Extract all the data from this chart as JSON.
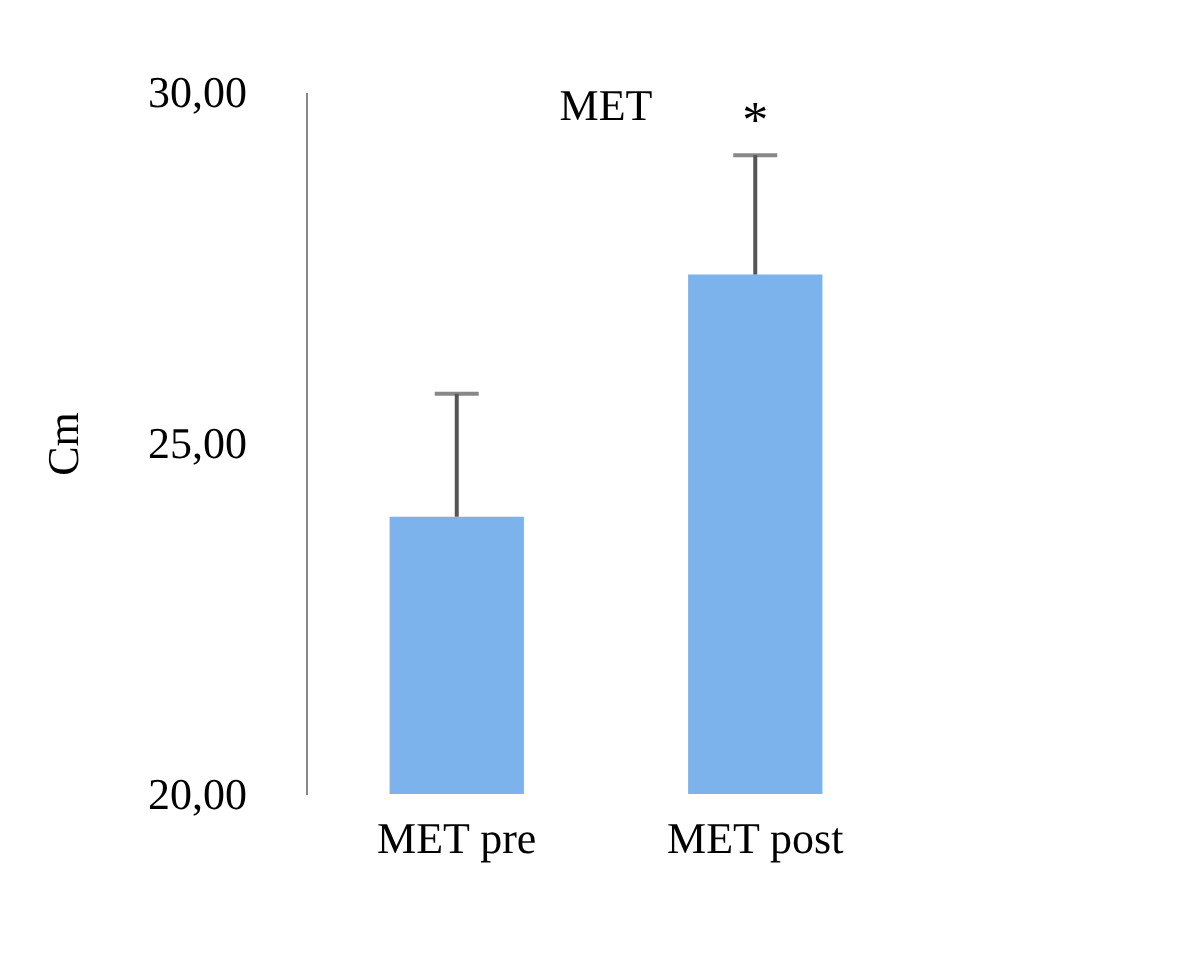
{
  "chart_data": {
    "type": "bar",
    "title": "MET",
    "ylabel": "Cm",
    "categories": [
      "MET pre",
      "MET post"
    ],
    "values": [
      23.95,
      27.4
    ],
    "errors": [
      [
        23.95,
        25.7
      ],
      [
        27.4,
        29.1
      ]
    ],
    "color": "#7db3ec",
    "ylim": [
      20,
      30
    ],
    "yticks": [
      {
        "value": 20,
        "label": "20,00"
      },
      {
        "value": 25,
        "label": "25,00"
      },
      {
        "value": 30,
        "label": "30,00"
      }
    ],
    "annotations": [
      "*"
    ],
    "grid": false
  }
}
